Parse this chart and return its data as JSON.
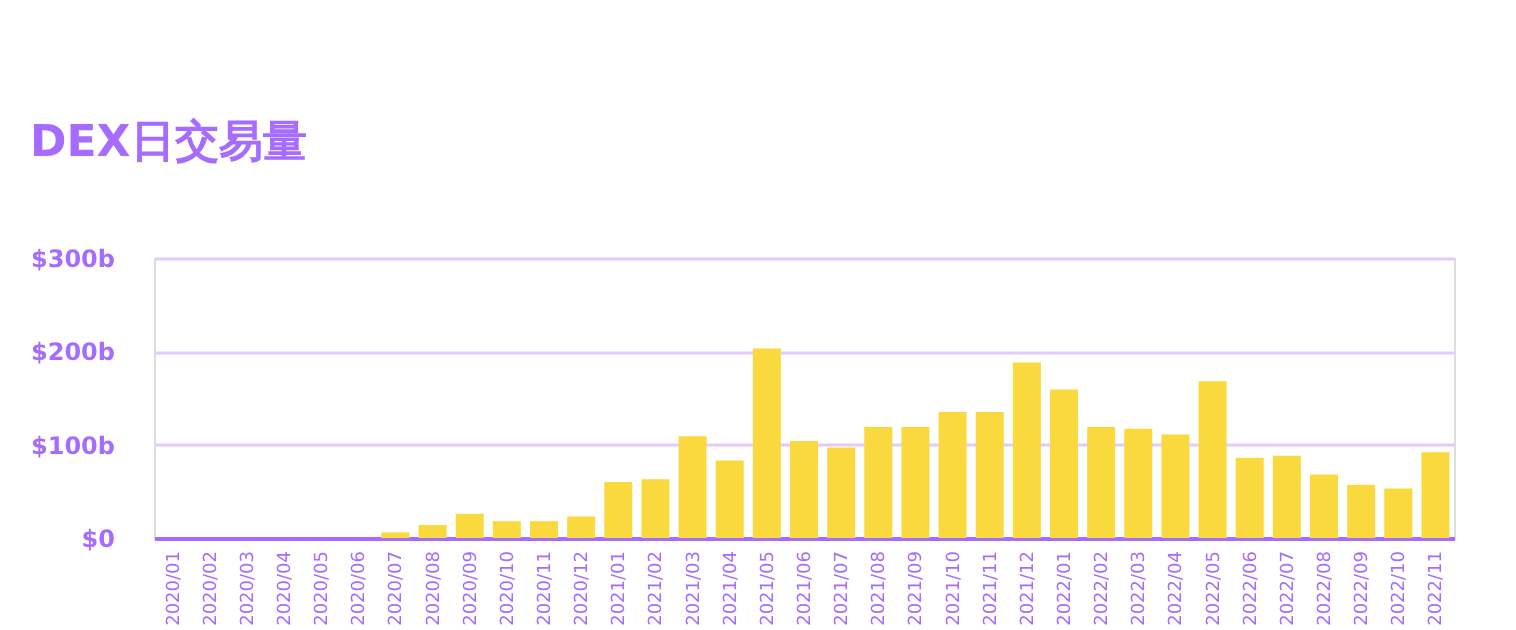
{
  "chart_data": {
    "type": "bar",
    "title": "DEX日交易量",
    "categories": [
      "2020/01",
      "2020/02",
      "2020/03",
      "2020/04",
      "2020/05",
      "2020/06",
      "2020/07",
      "2020/08",
      "2020/09",
      "2020/10",
      "2020/11",
      "2020/12",
      "2021/01",
      "2021/02",
      "2021/03",
      "2021/04",
      "2021/05",
      "2021/06",
      "2021/07",
      "2021/08",
      "2021/09",
      "2021/10",
      "2021/11",
      "2021/12",
      "2022/01",
      "2022/02",
      "2022/03",
      "2022/04",
      "2022/05",
      "2022/06",
      "2022/07",
      "2022/08",
      "2022/09",
      "2022/10",
      "2022/11"
    ],
    "series": [
      {
        "color": "#fad93f",
        "values": [
          0,
          0,
          0,
          0,
          0,
          0,
          6,
          14,
          26,
          18,
          18,
          23,
          60,
          63,
          109,
          83,
          203,
          104,
          97,
          119,
          119,
          135,
          135,
          188,
          159,
          119,
          117,
          111,
          168,
          86,
          88,
          68,
          57,
          53,
          92
        ]
      }
    ],
    "ylim": [
      0,
      300
    ],
    "yticks": [
      {
        "value": 0,
        "label": "$0"
      },
      {
        "value": 100,
        "label": "$100b"
      },
      {
        "value": 200,
        "label": "$200b"
      },
      {
        "value": 300,
        "label": "$300b"
      }
    ],
    "grid": "y",
    "legend": false
  }
}
